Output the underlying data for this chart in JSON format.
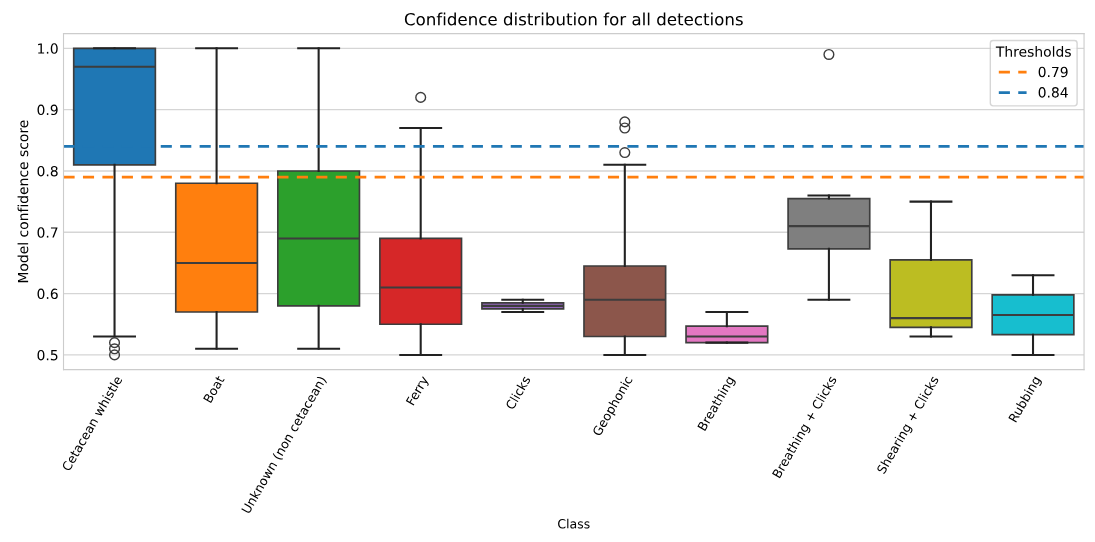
{
  "chart_data": {
    "type": "box",
    "title": "Confidence distribution for all detections",
    "xlabel": "Class",
    "ylabel": "Model confidence score",
    "categories": [
      "Cetacean whistle",
      "Boat",
      "Unknown (non cetacean)",
      "Ferry",
      "Clicks",
      "Geophonic",
      "Breathing",
      "Breathing + Clicks",
      "Shearing + Clicks",
      "Rubbing"
    ],
    "colors": [
      "#1f77b4",
      "#ff7f0e",
      "#2ca02c",
      "#d62728",
      "#9467bd",
      "#8c564b",
      "#e377c2",
      "#7f7f7f",
      "#bcbd22",
      "#17becf"
    ],
    "boxes": [
      {
        "low": 0.53,
        "q1": 0.81,
        "median": 0.97,
        "q3": 1.0,
        "high": 1.0,
        "outliers": [
          0.5,
          0.51,
          0.52
        ]
      },
      {
        "low": 0.51,
        "q1": 0.57,
        "median": 0.65,
        "q3": 0.78,
        "high": 1.0
      },
      {
        "low": 0.51,
        "q1": 0.58,
        "median": 0.69,
        "q3": 0.8,
        "high": 1.0
      },
      {
        "low": 0.5,
        "q1": 0.55,
        "median": 0.61,
        "q3": 0.69,
        "high": 0.87,
        "outliers": [
          0.92
        ]
      },
      {
        "low": 0.57,
        "q1": 0.575,
        "median": 0.58,
        "q3": 0.585,
        "high": 0.59
      },
      {
        "low": 0.5,
        "q1": 0.53,
        "median": 0.59,
        "q3": 0.645,
        "high": 0.81,
        "outliers": [
          0.83,
          0.87,
          0.88
        ]
      },
      {
        "low": 0.52,
        "q1": 0.52,
        "median": 0.53,
        "q3": 0.547,
        "high": 0.57
      },
      {
        "low": 0.59,
        "q1": 0.673,
        "median": 0.71,
        "q3": 0.755,
        "high": 0.76,
        "outliers": [
          0.99
        ]
      },
      {
        "low": 0.53,
        "q1": 0.545,
        "median": 0.56,
        "q3": 0.655,
        "high": 0.75
      },
      {
        "low": 0.5,
        "q1": 0.533,
        "median": 0.565,
        "q3": 0.598,
        "high": 0.63
      }
    ],
    "ylim": [
      0.476,
      1.024
    ],
    "yticks": [
      {
        "value": 0.5,
        "label": "0.5"
      },
      {
        "value": 0.6,
        "label": "0.6"
      },
      {
        "value": 0.7,
        "label": "0.7"
      },
      {
        "value": 0.8,
        "label": "0.8"
      },
      {
        "value": 0.9,
        "label": "0.9"
      },
      {
        "value": 1.0,
        "label": "1.0"
      }
    ],
    "ref_lines": [
      {
        "axis": "y",
        "value": 0.79,
        "label": "0.79",
        "color": "#ff7f0e",
        "line_style": "dashed"
      },
      {
        "axis": "y",
        "value": 0.84,
        "label": "0.84",
        "color": "#1f77b4",
        "line_style": "dashed"
      }
    ],
    "legend_title": "Thresholds",
    "legend": "top right",
    "grid": "y"
  }
}
